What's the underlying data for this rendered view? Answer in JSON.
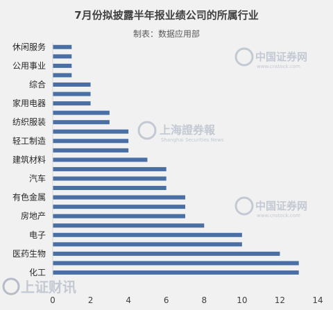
{
  "chart_data": {
    "type": "bar",
    "orientation": "horizontal",
    "title": "7月份拟披露半年报业绩公司的所属行业",
    "subtitle": "制表：数据应用部",
    "categories": [
      "休闲服务",
      "",
      "公用事业",
      "",
      "综合",
      "",
      "家用电器",
      "",
      "纺织服装",
      "",
      "轻工制造",
      "",
      "建筑材料",
      "",
      "汽车",
      "",
      "有色金属",
      "",
      "房地产",
      "",
      "电子",
      "",
      "医药生物",
      "",
      "化工"
    ],
    "values": [
      1,
      1,
      1,
      1,
      2,
      2,
      2,
      3,
      3,
      4,
      4,
      4,
      5,
      6,
      6,
      6,
      7,
      7,
      7,
      8,
      10,
      10,
      12,
      13,
      13
    ],
    "xlim": [
      0,
      14
    ],
    "xticks": [
      0,
      2,
      4,
      6,
      8,
      10,
      12,
      14
    ],
    "bar_color": "#4a6fa5",
    "grid": false,
    "legend": "none"
  },
  "watermarks": {
    "cnstock_cn": "中国证券网",
    "cnstock_en": "www.cnstock.com",
    "shzqb_cn": "上海證券報",
    "shzqb_en": "Shanghai Securities News",
    "brand": "上证财讯"
  }
}
